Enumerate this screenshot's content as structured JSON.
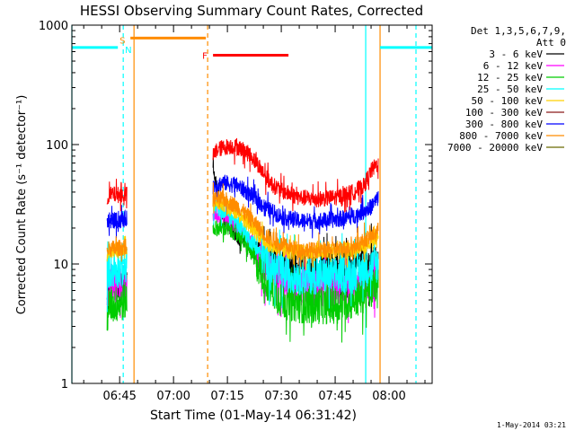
{
  "chart_data": {
    "type": "line",
    "title": "HESSI Observing Summary Count Rates, Corrected",
    "xlabel": "Start Time (01-May-14 06:31:42)",
    "ylabel": "Corrected Count Rate (s⁻¹ detector⁻¹)",
    "y_scale": "log",
    "ylim": [
      1,
      1000
    ],
    "xlim": [
      "06:31:42",
      "08:12:00"
    ],
    "x_tick_labels": [
      "06:45",
      "07:00",
      "07:15",
      "07:30",
      "07:45",
      "08:00"
    ],
    "y_tick_labels": [
      "1",
      "10",
      "100",
      "1000"
    ],
    "legend": {
      "placement": "top-right, outside plot",
      "header": [
        "Det 1,3,5,6,7,9,",
        "Att 0"
      ]
    },
    "series": [
      {
        "name": "3 - 6 keV",
        "color": "#000000",
        "segments": [
          {
            "x": [
              "06:41:30",
              "06:42:00",
              "06:44:00",
              "06:46:00",
              "06:47:00"
            ],
            "y": [
              4.5,
              6.5,
              6.5,
              6.8,
              7.0
            ]
          },
          {
            "x": [
              "07:11:00",
              "07:12:00",
              "07:14:00",
              "07:16:00",
              "07:18:00",
              "07:20:00",
              "07:22:00",
              "07:24:00",
              "07:26:00",
              "07:30:00",
              "07:35:00",
              "07:40:00",
              "07:45:00",
              "07:50:00",
              "07:55:00",
              "07:57:00"
            ],
            "y": [
              70,
              40,
              24,
              20,
              17,
              15,
              13,
              11,
              10,
              9.5,
              9.0,
              9.0,
              9.2,
              9.5,
              10,
              9.5
            ]
          }
        ]
      },
      {
        "name": "6 - 12 keV",
        "color": "#ff00ff",
        "segments": [
          {
            "x": [
              "06:41:30",
              "06:42:00",
              "06:44:00",
              "06:46:00",
              "06:47:00"
            ],
            "y": [
              6,
              6.5,
              6.6,
              6.8,
              6.5
            ]
          },
          {
            "x": [
              "07:11:00",
              "07:14:00",
              "07:18:00",
              "07:22:00",
              "07:26:00",
              "07:30:00",
              "07:35:00",
              "07:40:00",
              "07:45:00",
              "07:50:00",
              "07:55:00",
              "07:57:00"
            ],
            "y": [
              26,
              25,
              20,
              14,
              9.5,
              7.0,
              6.4,
              6.3,
              6.3,
              6.5,
              7.0,
              7.5
            ]
          }
        ]
      },
      {
        "name": "12 - 25 keV",
        "color": "#00cc00",
        "segments": [
          {
            "x": [
              "06:41:30",
              "06:42:00",
              "06:44:00",
              "06:46:00",
              "06:47:00"
            ],
            "y": [
              3.5,
              4.5,
              4.6,
              4.8,
              5.0
            ]
          },
          {
            "x": [
              "07:11:00",
              "07:14:00",
              "07:18:00",
              "07:22:00",
              "07:26:00",
              "07:30:00",
              "07:35:00",
              "07:40:00",
              "07:45:00",
              "07:50:00",
              "07:55:00",
              "07:57:00"
            ],
            "y": [
              20,
              20,
              18,
              12,
              7.0,
              5.0,
              4.6,
              4.5,
              4.5,
              5.0,
              6.0,
              7.5
            ]
          }
        ]
      },
      {
        "name": "25 - 50 keV",
        "color": "#00ffff",
        "segments": [
          {
            "x": [
              "06:41:30",
              "06:42:00",
              "06:44:00",
              "06:46:00",
              "06:47:00"
            ],
            "y": [
              8.5,
              9.0,
              9.0,
              9.2,
              9.5
            ]
          },
          {
            "x": [
              "07:11:00",
              "07:14:00",
              "07:18:00",
              "07:22:00",
              "07:26:00",
              "07:30:00",
              "07:35:00",
              "07:40:00",
              "07:45:00",
              "07:50:00",
              "07:55:00",
              "07:57:00"
            ],
            "y": [
              30,
              28,
              22,
              15,
              10.5,
              8.5,
              8.0,
              8.0,
              8.0,
              8.5,
              9.5,
              10
            ]
          }
        ]
      },
      {
        "name": "50 - 100 keV",
        "color": "#ffd000",
        "segments": [
          {
            "x": [
              "06:41:30",
              "06:42:00",
              "06:44:00",
              "06:46:00",
              "06:47:00"
            ],
            "y": [
              12,
              13,
              13,
              13,
              13
            ]
          },
          {
            "x": [
              "07:11:00",
              "07:14:00",
              "07:18:00",
              "07:22:00",
              "07:26:00",
              "07:30:00",
              "07:35:00",
              "07:40:00",
              "07:45:00",
              "07:50:00",
              "07:55:00",
              "07:57:00"
            ],
            "y": [
              33,
              32,
              27,
              20,
              15,
              13,
              12.5,
              12.5,
              12.8,
              13,
              15,
              16
            ]
          }
        ]
      },
      {
        "name": "100 - 300 keV",
        "color": "#8b1a1a",
        "segments": []
      },
      {
        "name": "300 - 800 keV",
        "color": "#0000ff",
        "segments": [
          {
            "x": [
              "06:41:30",
              "06:42:00",
              "06:44:00",
              "06:46:00",
              "06:47:00"
            ],
            "y": [
              22,
              23,
              23,
              23.5,
              24
            ]
          },
          {
            "x": [
              "07:11:00",
              "07:14:00",
              "07:18:00",
              "07:22:00",
              "07:26:00",
              "07:30:00",
              "07:35:00",
              "07:40:00",
              "07:45:00",
              "07:50:00",
              "07:55:00",
              "07:57:00"
            ],
            "y": [
              45,
              48,
              45,
              37,
              29,
              25,
              23,
              23,
              23.5,
              25,
              30,
              36
            ]
          }
        ]
      },
      {
        "name": "800 - 7000 keV",
        "color": "#ff8c00",
        "segments": [
          {
            "x": [
              "06:41:30",
              "06:42:00",
              "06:44:00",
              "06:46:00",
              "06:47:00"
            ],
            "y": [
              12.5,
              13.5,
              13.5,
              13.8,
              14
            ]
          },
          {
            "x": [
              "07:11:00",
              "07:14:00",
              "07:18:00",
              "07:22:00",
              "07:26:00",
              "07:30:00",
              "07:35:00",
              "07:40:00",
              "07:45:00",
              "07:50:00",
              "07:55:00",
              "07:57:00"
            ],
            "y": [
              35,
              35,
              30,
              23,
              17,
              14.5,
              13.2,
              13,
              13.2,
              14,
              17,
              19
            ]
          }
        ]
      },
      {
        "name": "7000 - 20000 keV",
        "color": "#6b6b00",
        "segments": []
      },
      {
        "name": "",
        "color": "#ff0000",
        "segments": [
          {
            "x": [
              "06:41:30",
              "06:42:00",
              "06:44:00",
              "06:46:00",
              "06:47:00"
            ],
            "y": [
              35,
              38,
              38,
              38,
              38
            ]
          },
          {
            "x": [
              "07:11:00",
              "07:12:00",
              "07:14:00",
              "07:16:00",
              "07:18:00",
              "07:20:00",
              "07:22:00",
              "07:24:00",
              "07:26:00",
              "07:28:00",
              "07:30:00",
              "07:35:00",
              "07:40:00",
              "07:45:00",
              "07:50:00",
              "07:53:00",
              "07:55:00",
              "07:57:00"
            ],
            "y": [
              80,
              90,
              95,
              97,
              95,
              88,
              78,
              65,
              52,
              45,
              41,
              36,
              35,
              36,
              40,
              45,
              60,
              70
            ]
          }
        ]
      }
    ],
    "flag_bars": [
      {
        "label": "",
        "color": "#00ffff",
        "x": [
          "06:31:42",
          "06:44:30"
        ],
        "y": 650
      },
      {
        "label": "S",
        "color": "#ff8c00",
        "x": [
          "06:48:00",
          "07:09:00"
        ],
        "y": 780
      },
      {
        "label": "N",
        "color": "#00ffff",
        "x": [
          "06:48:30",
          "06:48:30"
        ],
        "y": 650
      },
      {
        "label": "F",
        "color": "#ff0000",
        "x": [
          "07:11:00",
          "07:32:00"
        ],
        "y": 560
      },
      {
        "label": "",
        "color": "#00ffff",
        "x": [
          "07:57:30",
          "08:12:00"
        ],
        "y": 650
      }
    ],
    "vlines": [
      {
        "x": "06:31:42",
        "color": "#00ffff",
        "style": "solid"
      },
      {
        "x": "06:46:00",
        "color": "#00ffff",
        "style": "dashed"
      },
      {
        "x": "06:49:00",
        "color": "#ff8c00",
        "style": "solid"
      },
      {
        "x": "07:09:30",
        "color": "#ff8c00",
        "style": "dashed"
      },
      {
        "x": "07:53:30",
        "color": "#00ffff",
        "style": "solid"
      },
      {
        "x": "07:57:30",
        "color": "#ff8c00",
        "style": "solid"
      },
      {
        "x": "08:07:30",
        "color": "#00ffff",
        "style": "dashed"
      }
    ],
    "grid": false,
    "footer": "1-May-2014 03:21"
  }
}
